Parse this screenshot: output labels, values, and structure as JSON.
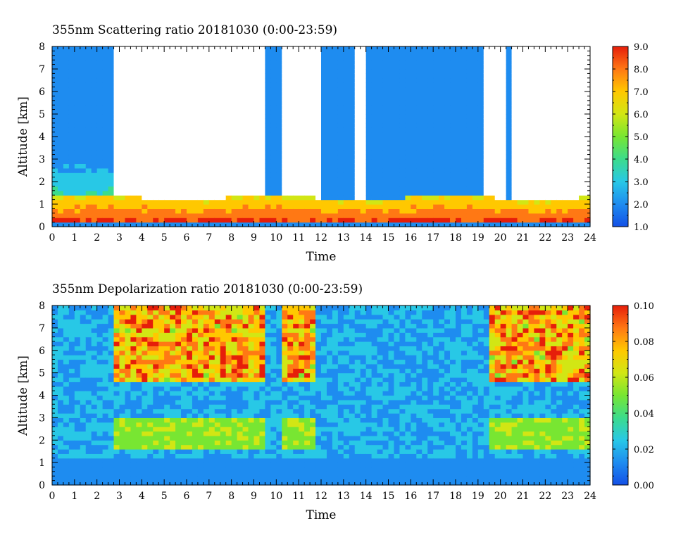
{
  "chart_data": [
    {
      "type": "heatmap",
      "title": "355nm Scattering ratio  20181030 (0:00-23:59)",
      "xlabel": "Time",
      "ylabel": "Altitude [km]",
      "xlim": [
        0,
        24
      ],
      "ylim": [
        0,
        8
      ],
      "xticks": [
        "0",
        "1",
        "2",
        "3",
        "4",
        "5",
        "6",
        "7",
        "8",
        "9",
        "10",
        "11",
        "12",
        "13",
        "14",
        "15",
        "16",
        "17",
        "18",
        "19",
        "20",
        "21",
        "22",
        "23",
        "24"
      ],
      "yticks": [
        "0",
        "1",
        "2",
        "3",
        "4",
        "5",
        "6",
        "7",
        "8"
      ],
      "colorbar": {
        "range": [
          1.0,
          9.0
        ],
        "ticks": [
          "1.0",
          "2.0",
          "3.0",
          "4.0",
          "5.0",
          "6.0",
          "7.0",
          "8.0",
          "9.0"
        ],
        "colormap": [
          "#1450e6",
          "#1e8cf0",
          "#28c8e6",
          "#3cdc8c",
          "#78e632",
          "#d2e614",
          "#ffc800",
          "#ff7814",
          "#e61e0a"
        ]
      },
      "features": {
        "boundary_layer_top_km": [
          [
            0,
            1.3
          ],
          [
            2.7,
            1.2
          ],
          [
            3.5,
            1.0
          ],
          [
            5,
            1.05
          ],
          [
            6,
            1.2
          ],
          [
            7,
            1.25
          ],
          [
            8,
            1.2
          ],
          [
            9,
            1.3
          ],
          [
            10,
            1.4
          ],
          [
            11,
            1.45
          ],
          [
            12,
            1.35
          ],
          [
            13,
            1.3
          ],
          [
            14,
            1.35
          ],
          [
            15,
            1.4
          ],
          [
            16,
            1.45
          ],
          [
            17,
            1.4
          ],
          [
            18,
            1.4
          ],
          [
            19,
            1.35
          ],
          [
            20,
            1.3
          ],
          [
            21,
            1.35
          ],
          [
            22,
            1.4
          ],
          [
            23,
            1.5
          ],
          [
            24,
            1.55
          ]
        ],
        "clear_signal_intervals_h": [
          [
            0,
            2.7
          ],
          [
            9.5,
            10.2
          ],
          [
            12.1,
            13.6
          ],
          [
            14.0,
            18.9
          ],
          [
            19.1,
            19.3
          ],
          [
            20.3,
            20.4
          ]
        ]
      }
    },
    {
      "type": "heatmap",
      "title": "355nm Depolarization ratio  20181030 (0:00-23:59)",
      "xlabel": "Time",
      "ylabel": "Altitude [km]",
      "xlim": [
        0,
        24
      ],
      "ylim": [
        0,
        8
      ],
      "xticks": [
        "0",
        "1",
        "2",
        "3",
        "4",
        "5",
        "6",
        "7",
        "8",
        "9",
        "10",
        "11",
        "12",
        "13",
        "14",
        "15",
        "16",
        "17",
        "18",
        "19",
        "20",
        "21",
        "22",
        "23",
        "24"
      ],
      "yticks": [
        "0",
        "1",
        "2",
        "3",
        "4",
        "5",
        "6",
        "7",
        "8"
      ],
      "colorbar": {
        "range": [
          0.0,
          0.1
        ],
        "ticks": [
          "0.00",
          "0.02",
          "0.04",
          "0.06",
          "0.08",
          "0.10"
        ],
        "colormap": [
          "#1450e6",
          "#1e8cf0",
          "#28c8e6",
          "#3cdc8c",
          "#78e632",
          "#d2e614",
          "#ffc800",
          "#ff7814",
          "#e61e0a"
        ]
      },
      "features": {
        "high_depol_intervals_h": [
          [
            2.8,
            9.5
          ],
          [
            10.3,
            11.8
          ],
          [
            19.6,
            24
          ]
        ],
        "low_cloud_base_km": 1.5,
        "dust_layer_km": [
          1.6,
          3.0
        ]
      }
    }
  ]
}
